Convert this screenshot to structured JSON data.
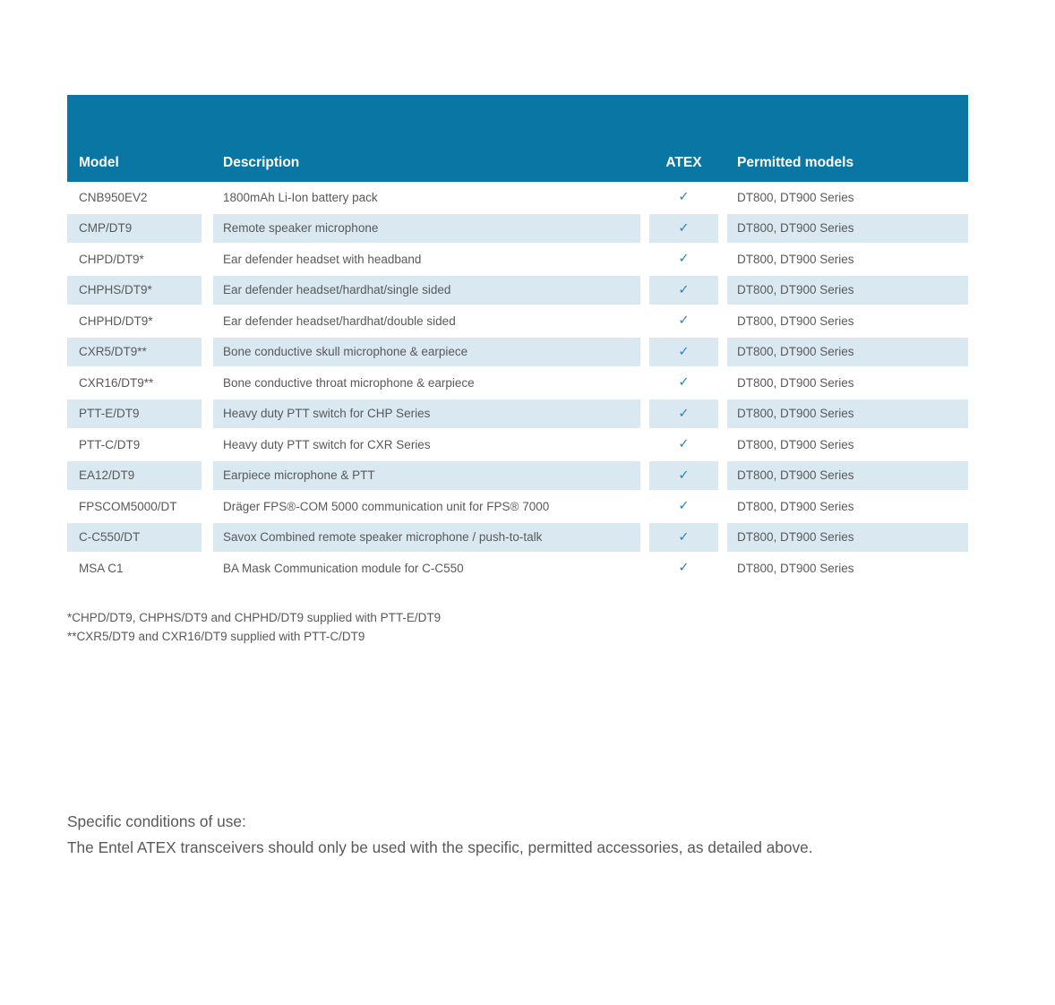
{
  "colors": {
    "header_bg": "#0a76a3",
    "stripe": "#dae8f2",
    "check": "#2d80b4",
    "text": "#58595b"
  },
  "table": {
    "columns": {
      "model": "Model",
      "description": "Description",
      "atex": "ATEX",
      "permitted": "Permitted models"
    },
    "check_glyph": "✓",
    "rows": [
      {
        "model": "CNB950EV2",
        "description": "1800mAh Li-Ion battery pack",
        "atex": true,
        "permitted": "DT800, DT900 Series"
      },
      {
        "model": "CMP/DT9",
        "description": "Remote speaker microphone",
        "atex": true,
        "permitted": "DT800, DT900 Series"
      },
      {
        "model": "CHPD/DT9*",
        "description": "Ear defender headset with headband",
        "atex": true,
        "permitted": "DT800, DT900 Series"
      },
      {
        "model": "CHPHS/DT9*",
        "description": "Ear defender headset/hardhat/single sided",
        "atex": true,
        "permitted": "DT800, DT900 Series"
      },
      {
        "model": "CHPHD/DT9*",
        "description": "Ear defender headset/hardhat/double sided",
        "atex": true,
        "permitted": "DT800, DT900 Series"
      },
      {
        "model": "CXR5/DT9**",
        "description": "Bone conductive skull microphone & earpiece",
        "atex": true,
        "permitted": "DT800, DT900 Series"
      },
      {
        "model": "CXR16/DT9**",
        "description": "Bone conductive throat microphone & earpiece",
        "atex": true,
        "permitted": "DT800, DT900 Series"
      },
      {
        "model": "PTT-E/DT9",
        "description": "Heavy duty PTT switch for CHP Series",
        "atex": true,
        "permitted": "DT800, DT900 Series"
      },
      {
        "model": "PTT-C/DT9",
        "description": "Heavy duty PTT switch for CXR Series",
        "atex": true,
        "permitted": "DT800, DT900 Series"
      },
      {
        "model": "EA12/DT9",
        "description": "Earpiece microphone & PTT",
        "atex": true,
        "permitted": "DT800, DT900 Series"
      },
      {
        "model": "FPSCOM5000/DT",
        "description": "Dräger FPS®-COM 5000 communication unit for FPS® 7000",
        "atex": true,
        "permitted": "DT800, DT900 Series"
      },
      {
        "model": "C-C550/DT",
        "description": "Savox Combined remote speaker microphone / push-to-talk",
        "atex": true,
        "permitted": "DT800, DT900 Series"
      },
      {
        "model": "MSA C1",
        "description": "BA Mask Communication module for C-C550",
        "atex": true,
        "permitted": "DT800, DT900 Series"
      }
    ]
  },
  "footnotes": [
    "*CHPD/DT9, CHPHS/DT9 and CHPHD/DT9 supplied with PTT-E/DT9",
    "**CXR5/DT9 and CXR16/DT9 supplied with PTT-C/DT9"
  ],
  "conditions": {
    "heading": "Specific conditions of use:",
    "body": "The Entel ATEX transceivers should only be used with the specific, permitted accessories, as detailed above."
  }
}
